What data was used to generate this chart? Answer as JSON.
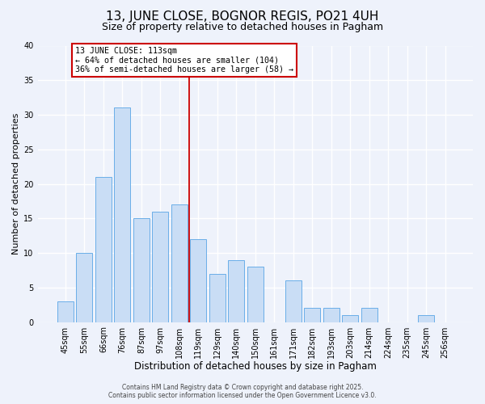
{
  "title": "13, JUNE CLOSE, BOGNOR REGIS, PO21 4UH",
  "subtitle": "Size of property relative to detached houses in Pagham",
  "xlabel": "Distribution of detached houses by size in Pagham",
  "ylabel": "Number of detached properties",
  "categories": [
    "45sqm",
    "55sqm",
    "66sqm",
    "76sqm",
    "87sqm",
    "97sqm",
    "108sqm",
    "119sqm",
    "129sqm",
    "140sqm",
    "150sqm",
    "161sqm",
    "171sqm",
    "182sqm",
    "193sqm",
    "203sqm",
    "214sqm",
    "224sqm",
    "235sqm",
    "245sqm",
    "256sqm"
  ],
  "values": [
    3,
    10,
    21,
    31,
    15,
    16,
    17,
    12,
    7,
    9,
    8,
    0,
    6,
    2,
    2,
    1,
    2,
    0,
    0,
    1,
    0
  ],
  "bar_color": "#c9ddf5",
  "bar_edge_color": "#6aaee8",
  "ylim": [
    0,
    40
  ],
  "yticks": [
    0,
    5,
    10,
    15,
    20,
    25,
    30,
    35,
    40
  ],
  "vline_x_index": 6.5,
  "vline_color": "#cc0000",
  "annotation_title": "13 JUNE CLOSE: 113sqm",
  "annotation_line1": "← 64% of detached houses are smaller (104)",
  "annotation_line2": "36% of semi-detached houses are larger (58) →",
  "annotation_box_color": "#ffffff",
  "annotation_box_edge": "#cc0000",
  "footer1": "Contains HM Land Registry data © Crown copyright and database right 2025.",
  "footer2": "Contains public sector information licensed under the Open Government Licence v3.0.",
  "background_color": "#eef2fb",
  "grid_color": "#ffffff",
  "title_fontsize": 11,
  "subtitle_fontsize": 9,
  "xlabel_fontsize": 8.5,
  "ylabel_fontsize": 8,
  "tick_fontsize": 7,
  "footer_fontsize": 5.5
}
